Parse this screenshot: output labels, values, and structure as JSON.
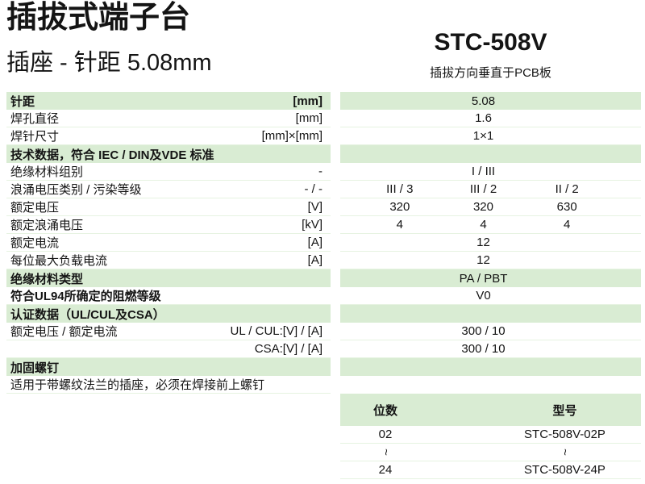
{
  "page": {
    "title": "插拔式端子台",
    "subtitle": "插座 - 针距  5.08mm",
    "model": "STC-508V",
    "model_tagline": "插拔方向垂直于PCB板"
  },
  "colors": {
    "row_green": "#d9ecd3",
    "row_line": "#e6f3e1"
  },
  "spec_table": {
    "rows": [
      {
        "label": "针距",
        "unit": "[mm]",
        "value": "5.08"
      },
      {
        "label": "焊孔直径",
        "unit": "[mm]",
        "value": "1.6"
      },
      {
        "label": "焊针尺寸",
        "unit": "[mm]×[mm]",
        "value": "1×1"
      },
      {
        "label": "技术数据，符合 IEC / DIN及VDE 标准",
        "unit": "",
        "value": ""
      },
      {
        "label": "绝缘材料组别",
        "unit": "-",
        "value": "I / III"
      },
      {
        "label": "浪涌电压类别 / 污染等级",
        "unit": "- / -",
        "values": [
          "III / 3",
          "III / 2",
          "II / 2"
        ]
      },
      {
        "label": "额定电压",
        "unit": "[V]",
        "values": [
          "320",
          "320",
          "630"
        ]
      },
      {
        "label": "额定浪涌电压",
        "unit": "[kV]",
        "values": [
          "4",
          "4",
          "4"
        ]
      },
      {
        "label": "额定电流",
        "unit": "[A]",
        "value": "12"
      },
      {
        "label": "每位最大负载电流",
        "unit": "[A]",
        "value": "12"
      },
      {
        "label": "绝缘材料类型",
        "unit": "",
        "value": "PA / PBT"
      },
      {
        "label": "符合UL94所确定的阻燃等级",
        "unit": "",
        "value": "V0"
      },
      {
        "label": "认证数据（UL/CUL及CSA）",
        "unit": "",
        "value": ""
      },
      {
        "label": "额定电压 / 额定电流",
        "unit": "UL / CUL:[V] / [A]",
        "value": "300 / 10"
      },
      {
        "label": "",
        "unit": "CSA:[V] / [A]",
        "value": "300 / 10"
      },
      {
        "label": "加固螺钉",
        "unit": "",
        "value": ""
      },
      {
        "label": "适用于带螺纹法兰的插座，必须在焊接前上螺钉",
        "unit": "",
        "value": ""
      }
    ]
  },
  "model_table": {
    "headers": [
      "位数",
      "型号"
    ],
    "rows": [
      {
        "positions": "02",
        "part": "STC-508V-02P"
      },
      {
        "positions": "~",
        "part": "~"
      },
      {
        "positions": "24",
        "part": "STC-508V-24P"
      }
    ]
  }
}
